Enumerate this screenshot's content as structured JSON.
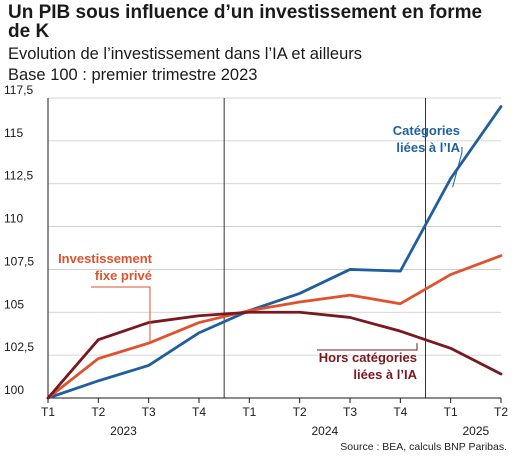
{
  "title": "Un PIB sous influence d’un investissement en forme de K",
  "subtitle": "Evolution de l’investissement dans l’IA et ailleurs",
  "subtitle2": "Base 100 : premier trimestre 2023",
  "source": "Source : BEA, calculs BNP Paribas.",
  "chart_data": {
    "type": "line",
    "x": [
      "T1",
      "T2",
      "T3",
      "T4",
      "T1",
      "T2",
      "T3",
      "T4",
      "T1",
      "T2"
    ],
    "year_labels": [
      {
        "label": "2023",
        "start": 0,
        "end": 3
      },
      {
        "label": "2024",
        "start": 4,
        "end": 7
      },
      {
        "label": "2025",
        "start": 8,
        "end": 9
      }
    ],
    "ylim": [
      100,
      117.5
    ],
    "yticks": [
      "100",
      "102,5",
      "105",
      "107,5",
      "110",
      "112,5",
      "115",
      "117,5"
    ],
    "ytick_values": [
      100,
      102.5,
      105,
      107.5,
      110,
      112.5,
      115,
      117.5
    ],
    "grid": true,
    "year_separators": [
      3.5,
      7.5
    ],
    "series": [
      {
        "name": "Catégories liées à l’IA",
        "label_lines": [
          "Catégories",
          "liées à l’IA"
        ],
        "color": "#1f5f9e",
        "values": [
          100,
          101.0,
          101.9,
          103.8,
          105.1,
          106.1,
          107.5,
          107.4,
          112.8,
          117.0
        ]
      },
      {
        "name": "Investissement fixe privé",
        "label_lines": [
          "Investissement",
          "fixe privé"
        ],
        "color": "#e0522d",
        "values": [
          100,
          102.3,
          103.2,
          104.4,
          105.1,
          105.6,
          106.0,
          105.5,
          107.2,
          108.3
        ]
      },
      {
        "name": "Hors catégories liées à l’IA",
        "label_lines": [
          "Hors catégories",
          "liées à l’IA"
        ],
        "color": "#7a1820",
        "values": [
          100,
          103.4,
          104.4,
          104.8,
          105.0,
          105.0,
          104.7,
          103.9,
          102.9,
          101.4
        ]
      }
    ]
  }
}
